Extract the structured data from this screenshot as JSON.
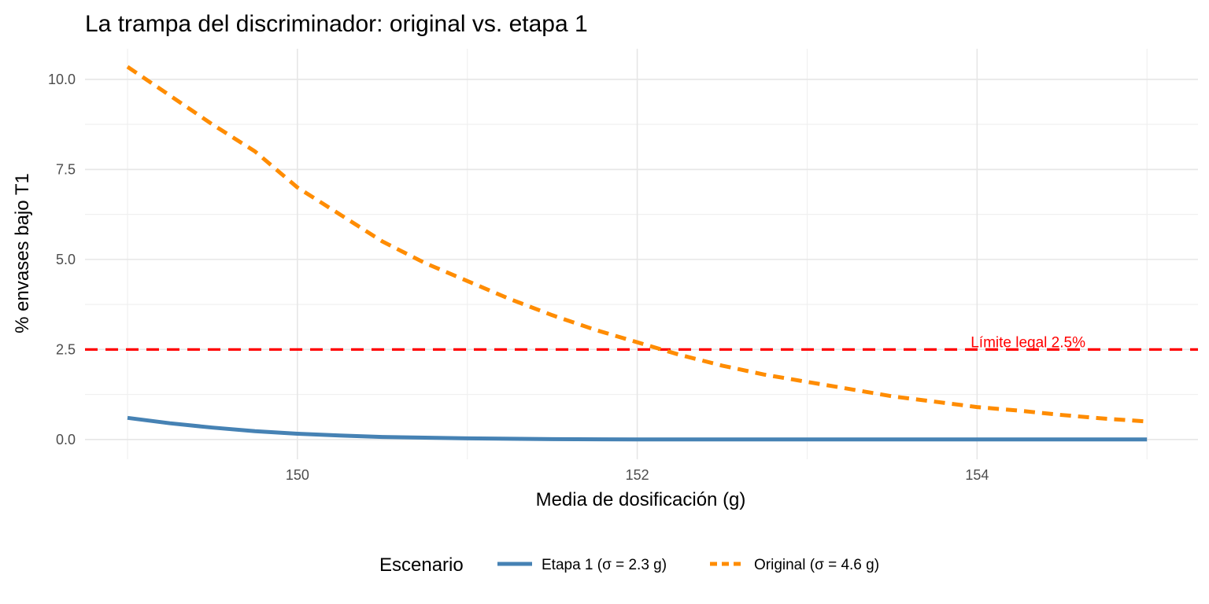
{
  "chart_data": {
    "type": "line",
    "title": "La trampa del discriminador: original vs. etapa 1",
    "xlabel": "Media de dosificación (g)",
    "ylabel": "% envases bajo T1",
    "xlim": [
      148.75,
      155.3
    ],
    "ylim": [
      -0.55,
      10.85
    ],
    "x_ticks": [
      150,
      152,
      154
    ],
    "x_tick_labels": [
      "150",
      "152",
      "154"
    ],
    "y_ticks": [
      0,
      2.5,
      5,
      7.5,
      10
    ],
    "y_tick_labels": [
      "0.0",
      "2.5",
      "5.0",
      "7.5",
      "10.0"
    ],
    "grid": true,
    "legend_position": "bottom",
    "legend_title": "Escenario",
    "series": [
      {
        "name": "Etapa 1  (σ = 2.3 g)",
        "color": "#4682b4",
        "dash": "solid",
        "x": [
          149,
          149.25,
          149.5,
          149.75,
          150,
          150.25,
          150.5,
          150.75,
          151,
          151.5,
          152,
          152.5,
          153,
          153.5,
          154,
          154.5,
          155
        ],
        "y": [
          0.6,
          0.45,
          0.33,
          0.23,
          0.16,
          0.11,
          0.07,
          0.05,
          0.03,
          0.01,
          0.0,
          0.0,
          0.0,
          0.0,
          0.0,
          0.0,
          0.0
        ]
      },
      {
        "name": "Original (σ = 4.6 g)",
        "color": "#ff8c00",
        "dash": "dashed",
        "x": [
          149,
          149.25,
          149.5,
          149.75,
          150,
          150.25,
          150.5,
          150.75,
          151,
          151.25,
          151.5,
          151.75,
          152,
          152.25,
          152.5,
          152.75,
          153,
          153.25,
          153.5,
          153.75,
          154,
          154.25,
          154.5,
          154.75,
          155
        ],
        "y": [
          10.35,
          9.55,
          8.75,
          8.0,
          7.0,
          6.25,
          5.5,
          4.9,
          4.4,
          3.9,
          3.45,
          3.05,
          2.7,
          2.35,
          2.05,
          1.8,
          1.6,
          1.4,
          1.2,
          1.05,
          0.9,
          0.8,
          0.68,
          0.58,
          0.5
        ]
      }
    ],
    "reference_line": {
      "y": 2.5,
      "color": "#ff0000",
      "label": "Límite legal 2.5%"
    }
  }
}
